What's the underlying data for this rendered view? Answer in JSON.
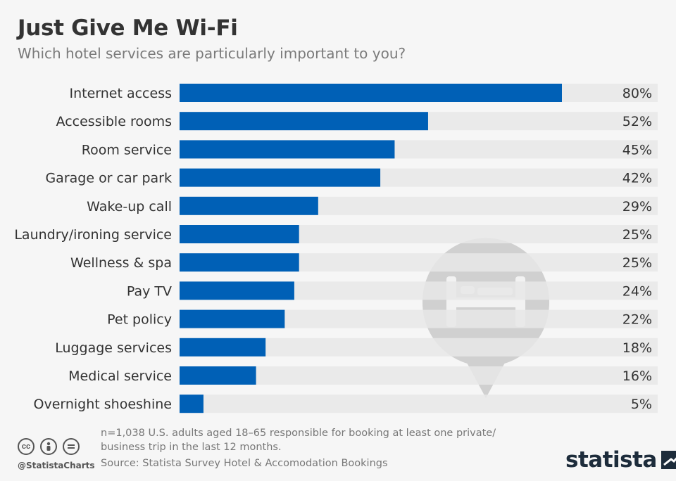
{
  "title": "Just Give Me Wi-Fi",
  "subtitle": "Which hotel services are particularly important to you?",
  "chart_data": {
    "type": "bar",
    "orientation": "horizontal",
    "categories": [
      "Internet access",
      "Accessible rooms",
      "Room service",
      "Garage or car park",
      "Wake-up call",
      "Laundry/ironing service",
      "Wellness & spa",
      "Pay TV",
      "Pet policy",
      "Luggage services",
      "Medical service",
      "Overnight shoeshine"
    ],
    "values": [
      80,
      52,
      45,
      42,
      29,
      25,
      25,
      24,
      22,
      18,
      16,
      5
    ],
    "value_suffix": "%",
    "xlim": [
      0,
      100
    ],
    "grid": false,
    "legend": "none",
    "colors": {
      "bar": "#0060b6",
      "track": "#e8e8e8"
    }
  },
  "footer": {
    "note": "n=1,038 U.S. adults aged 18–65 responsible for booking at least one private/ business trip in the last 12 months.",
    "source": "Source: Statista Survey Hotel & Accomodation Bookings",
    "handle": "@StatistaCharts",
    "logo": "statista"
  }
}
